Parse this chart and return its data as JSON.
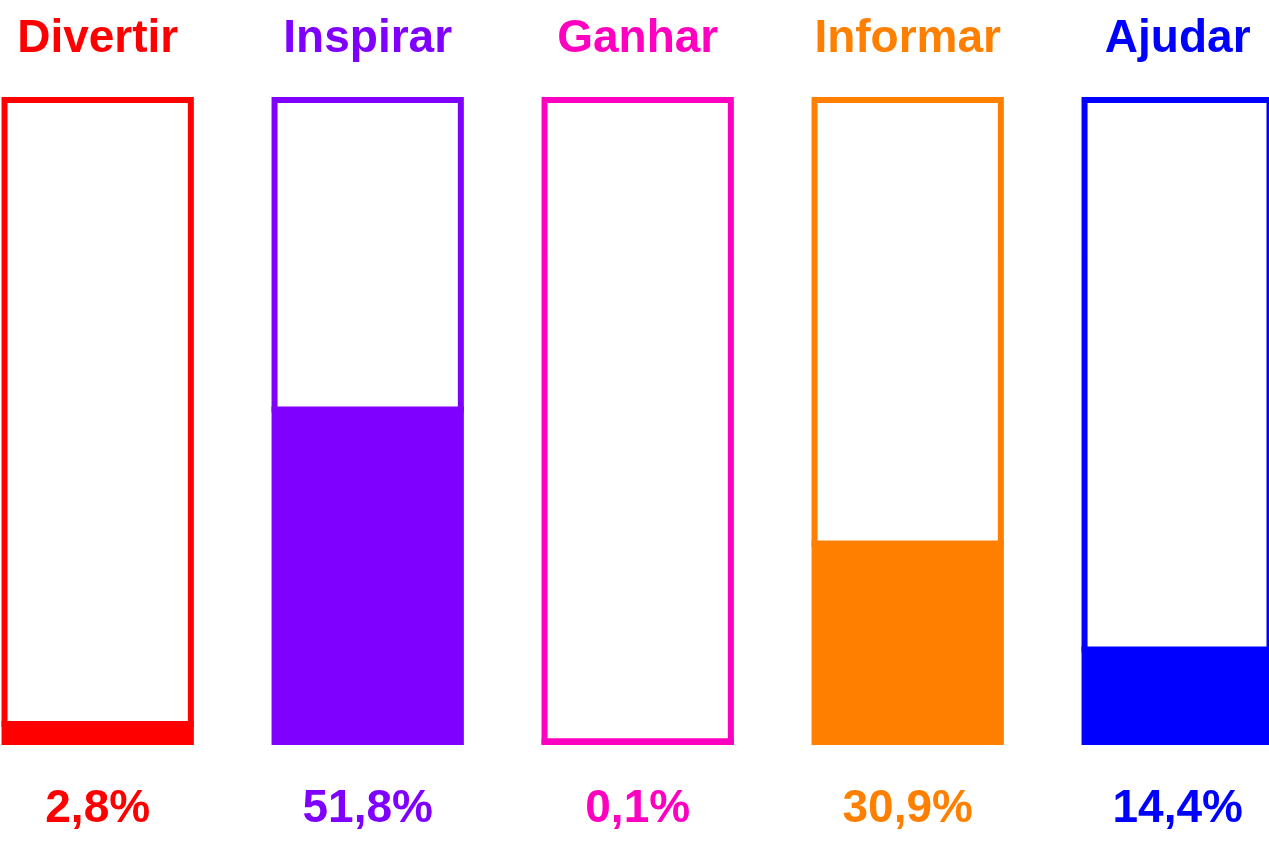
{
  "chart_data": {
    "type": "bar",
    "stacked": true,
    "categories": [
      "Divertir",
      "Inspirar",
      "Ganhar",
      "Informar",
      "Ajudar"
    ],
    "series": [
      {
        "colors": [
          "#ff0000",
          "#8000ff",
          "#ff00c0",
          "#ff8000",
          "#0000ff"
        ],
        "values": [
          2.8,
          51.8,
          0.1,
          30.9,
          14.4
        ],
        "value_labels": [
          "2,8%",
          "51,8%",
          "0,1%",
          "30,9%",
          "14,4%"
        ]
      },
      {
        "color": "#ffffff",
        "values": [
          97.2,
          48.2,
          99.9,
          69.1,
          85.6
        ]
      }
    ],
    "ylim": [
      0,
      100
    ],
    "tick_labels": "x",
    "grid": false
  }
}
